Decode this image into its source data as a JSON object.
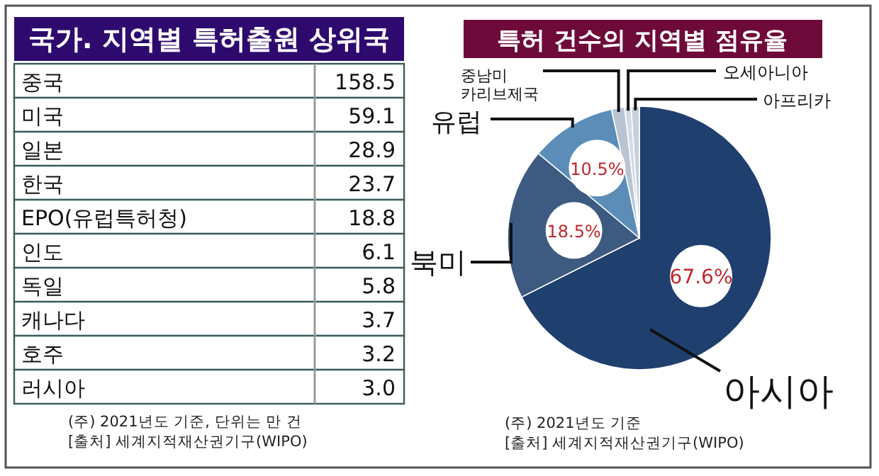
{
  "chart_data": [
    {
      "type": "other",
      "title": "국가. 지역별 특허출원 상위국",
      "categories": [
        "중국",
        "미국",
        "일본",
        "한국",
        "EPO(유럽특허청)",
        "인도",
        "독일",
        "캐나다",
        "호주",
        "러시아"
      ],
      "values": [
        158.5,
        59.1,
        28.9,
        23.7,
        18.8,
        6.1,
        5.8,
        3.7,
        3.2,
        3.0
      ],
      "value_labels": [
        "158.5",
        "59.1",
        "28.9",
        "23.7",
        "18.8",
        "6.1",
        "5.8",
        "3.7",
        "3.2",
        "3.0"
      ],
      "annotations": [
        "(주) 2021년도 기준, 단위는 만 건",
        "[출처] 세계지적재산권기구(WIPO)"
      ]
    },
    {
      "type": "pie",
      "title": "특허 건수의 지역별 점유율",
      "categories": [
        "아시아",
        "북미",
        "유럽",
        "중남미\n카리브제국",
        "오세아니아",
        "아프리카"
      ],
      "values": [
        67.6,
        18.5,
        10.5,
        1.6,
        0.8,
        1.0
      ],
      "colors": [
        "#1f3f6e",
        "#3d5a80",
        "#5b8db8",
        "#b8c4d4",
        "#d4dbe6",
        "#c6d0de"
      ],
      "value_labels": [
        "67.6%",
        "18.5%",
        "10.5%",
        null,
        null,
        null
      ],
      "annotations": [
        "(주) 2021년도 기준",
        "[출처] 세계지적재산권기구(WIPO)"
      ]
    }
  ]
}
